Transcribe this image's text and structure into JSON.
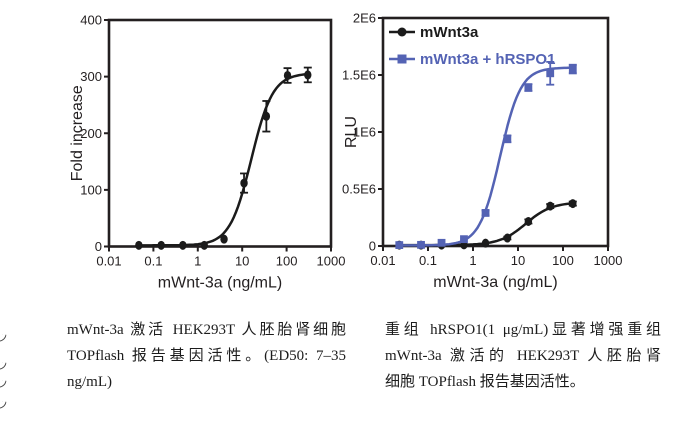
{
  "figure": {
    "background": "#ffffff",
    "axis_color": "#231f20",
    "black_series_color": "#1b1b1b",
    "blue_series_color": "#5463b4"
  },
  "chart_data": [
    {
      "type": "line",
      "title": "",
      "xlabel": "mWnt-3a (ng/mL)",
      "ylabel": "Fold increase",
      "xscale": "log",
      "xlim": [
        0.01,
        1000
      ],
      "ylim": [
        0,
        400
      ],
      "xticks": [
        0.01,
        0.1,
        1,
        10,
        100,
        1000
      ],
      "xtick_labels": [
        "0.01",
        "0.1",
        "1",
        "10",
        "100",
        "1000"
      ],
      "yticks": [
        0,
        100,
        200,
        300,
        400
      ],
      "ytick_labels": [
        "0",
        "100",
        "200",
        "300",
        "400"
      ],
      "grid": false,
      "legend": null,
      "series": [
        {
          "name": "mWnt3a",
          "color": "#1b1b1b",
          "marker": "circle",
          "x": [
            0.047,
            0.15,
            0.46,
            1.4,
            3.9,
            11,
            35,
            105,
            300
          ],
          "y": [
            2,
            2,
            2,
            2,
            13,
            112,
            230,
            302,
            303
          ],
          "yerr": [
            0,
            0,
            0,
            0,
            0,
            17,
            27,
            13,
            13
          ],
          "fit": {
            "bottom": 2,
            "top": 306,
            "ec50": 16,
            "hill": 1.8
          }
        }
      ]
    },
    {
      "type": "line",
      "title": "",
      "xlabel": "mWnt-3a (ng/mL)",
      "ylabel": "RLU",
      "xscale": "log",
      "xlim": [
        0.01,
        1000
      ],
      "ylim": [
        0,
        2000000
      ],
      "xticks": [
        0.01,
        0.1,
        1,
        10,
        100,
        1000
      ],
      "xtick_labels": [
        "0.01",
        "0.1",
        "1",
        "10",
        "100",
        "1000"
      ],
      "yticks": [
        0,
        500000,
        1000000,
        1500000,
        2000000
      ],
      "ytick_labels": [
        "0",
        "0.5E6",
        "1E6",
        "1.5E6",
        "2E6"
      ],
      "grid": false,
      "legend": {
        "position": "top-left",
        "entries": [
          "mWnt3a",
          "mWnt3a + hRSPO1"
        ]
      },
      "series": [
        {
          "name": "mWnt3a",
          "color": "#1b1b1b",
          "marker": "circle",
          "x": [
            0.023,
            0.07,
            0.2,
            0.63,
            1.9,
            5.8,
            17,
            52,
            165
          ],
          "y": [
            8000,
            8000,
            8000,
            10000,
            25000,
            70000,
            215000,
            350000,
            372000
          ],
          "yerr": [
            0,
            0,
            0,
            0,
            0,
            12000,
            18000,
            18000,
            18000
          ],
          "fit": {
            "bottom": 8000,
            "top": 385000,
            "ec50": 15,
            "hill": 1.5
          }
        },
        {
          "name": "mWnt3a + hRSPO1",
          "color": "#5463b4",
          "marker": "square",
          "x": [
            0.023,
            0.07,
            0.2,
            0.63,
            1.9,
            5.8,
            17,
            52,
            165
          ],
          "y": [
            8000,
            10000,
            28000,
            60000,
            290000,
            940000,
            1390000,
            1515000,
            1552000
          ],
          "yerr": [
            0,
            0,
            0,
            0,
            22000,
            30000,
            30000,
            100000,
            38000
          ],
          "fit": {
            "bottom": 5000,
            "top": 1565000,
            "ec50": 4.0,
            "hill": 1.9
          }
        }
      ]
    }
  ],
  "captions": {
    "left": {
      "lines": [
        "mWnt-3a 激活 HEK293T 人胚胎肾细胞",
        "TOPflash 报告基因活性。(ED50: 7–35",
        "ng/mL)"
      ]
    },
    "right": {
      "lines": [
        "重组 hRSPO1(1 μg/mL)显著增强重组",
        "mWnt-3a 激活的 HEK293T 人胚胎肾",
        "细胞 TOPflash 报告基因活性。"
      ]
    }
  }
}
